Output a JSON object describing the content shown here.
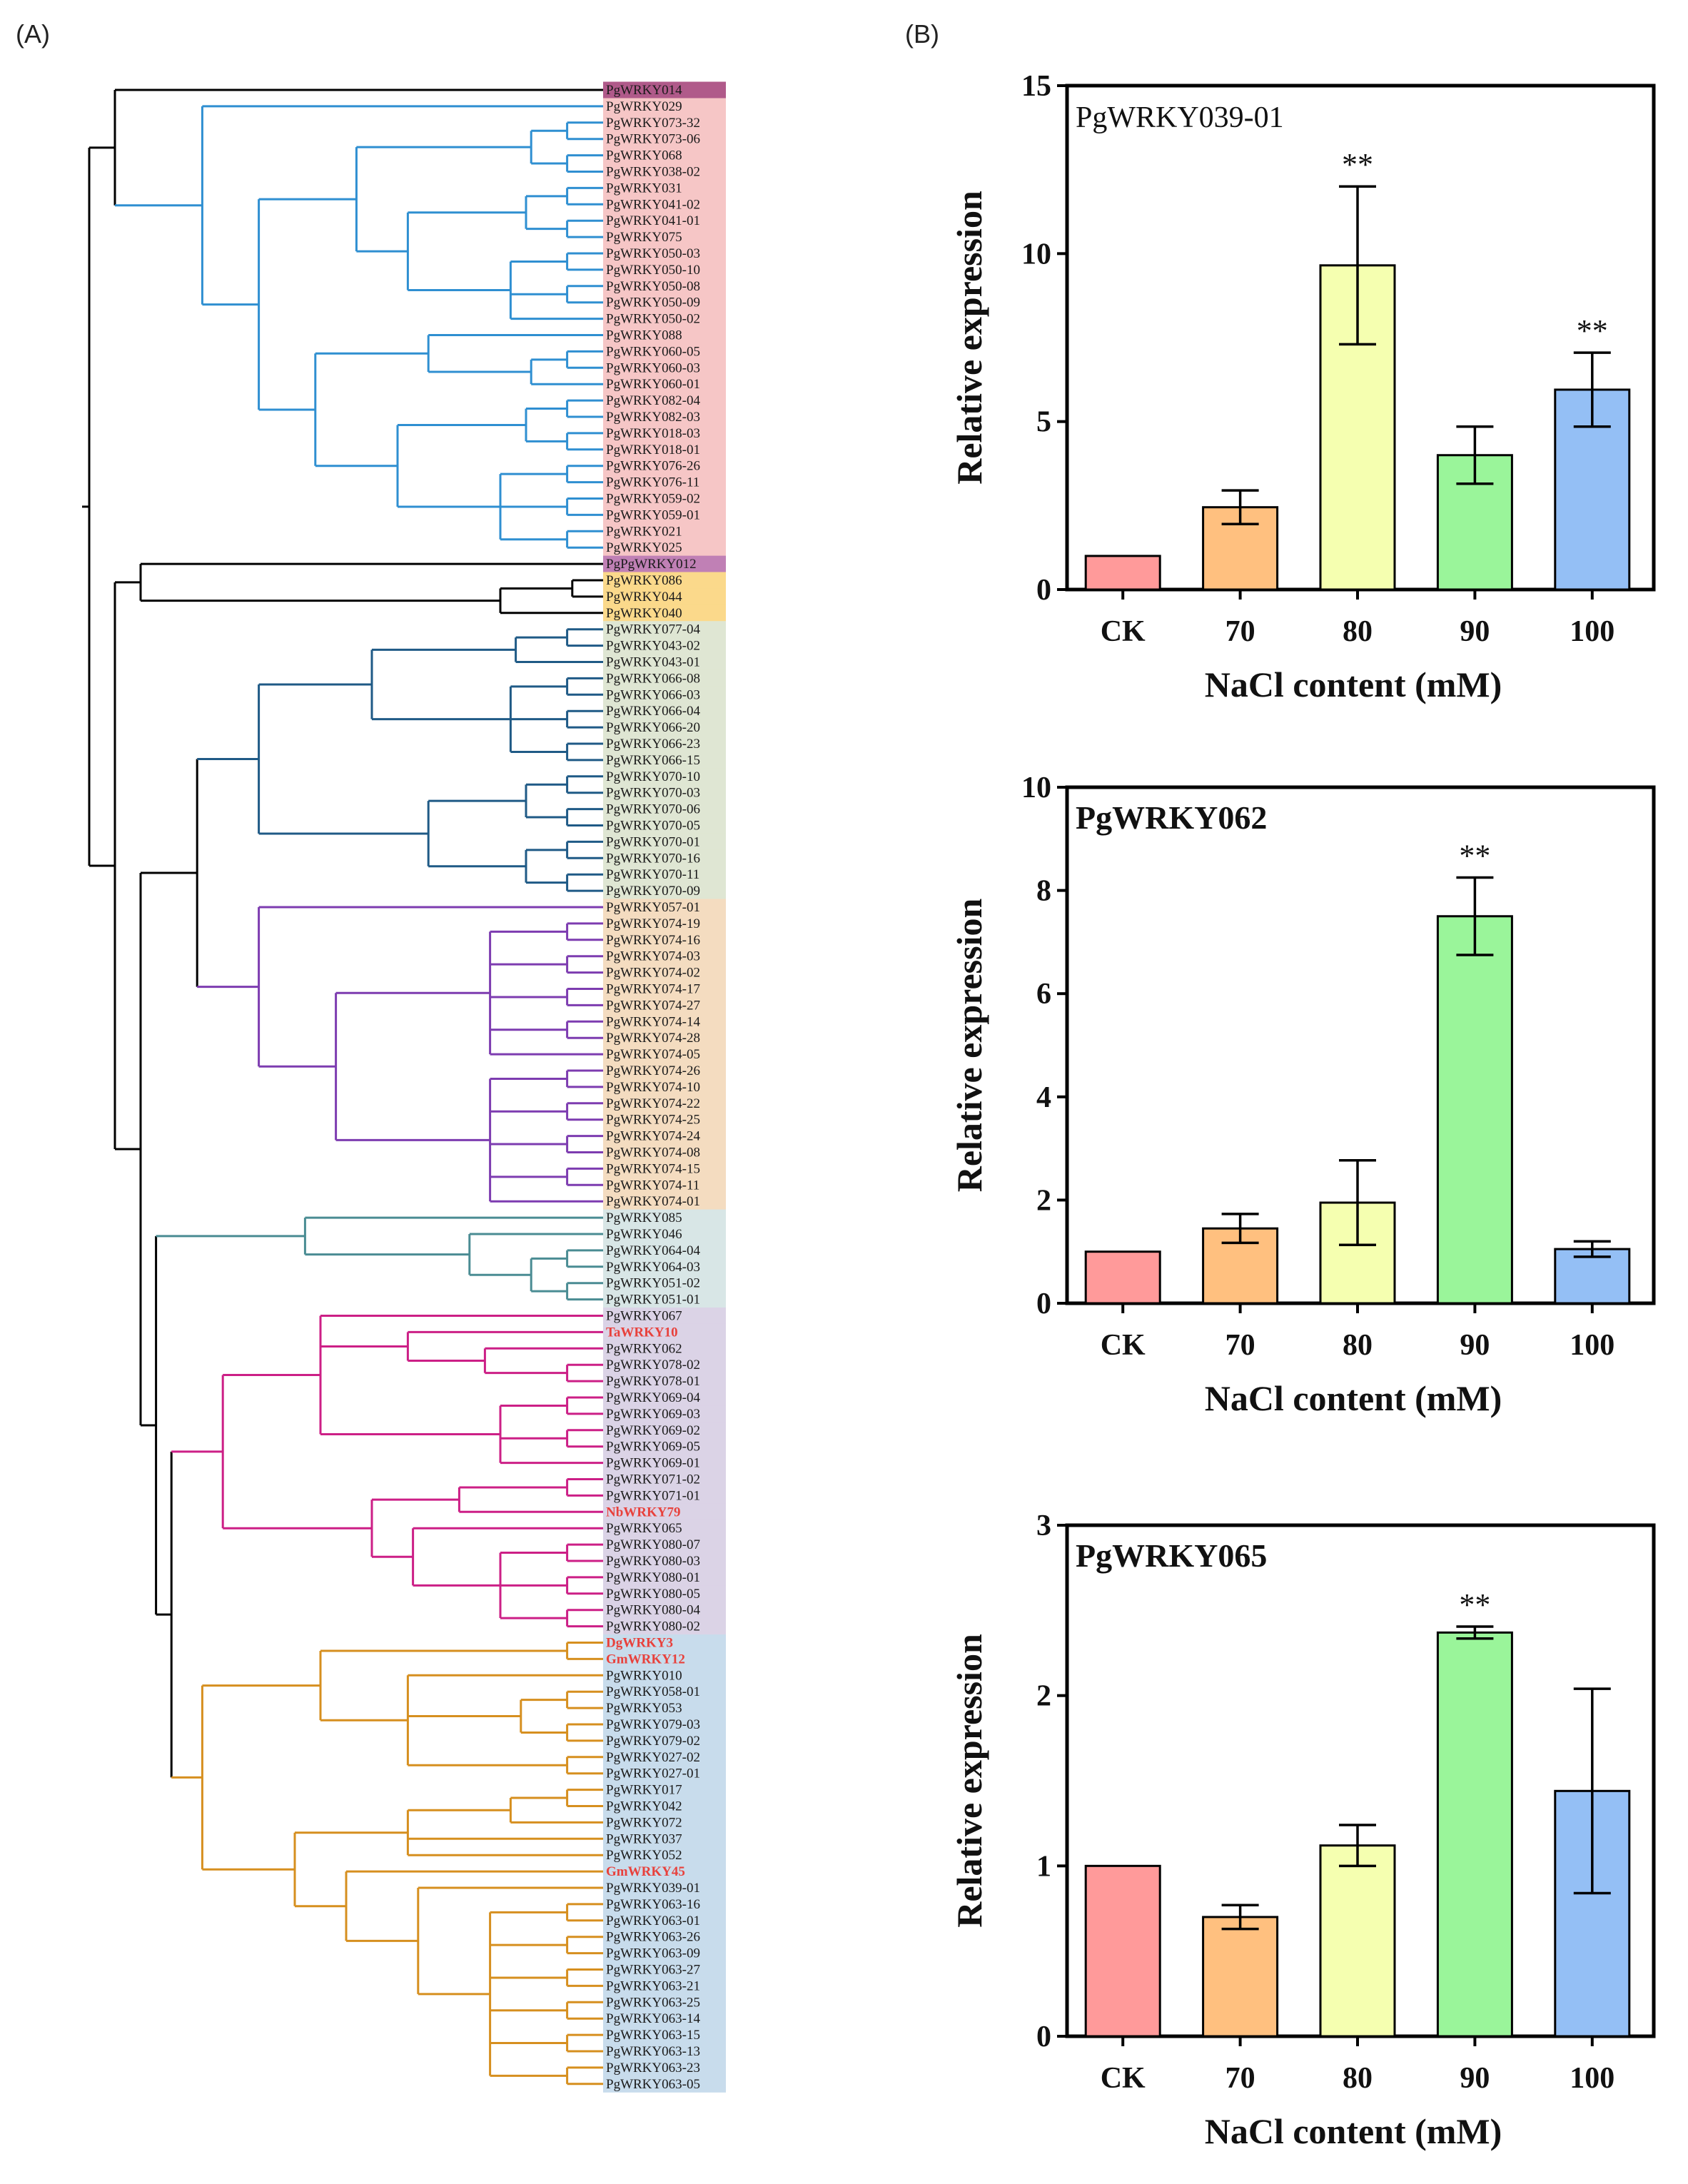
{
  "panels": {
    "a": "(A)",
    "b": "(B)"
  },
  "tree": {
    "leaves": [
      {
        "label": "PgWRKY014",
        "clade": "k"
      },
      {
        "label": "PgWRKY029",
        "clade": "b"
      },
      {
        "label": "PgWRKY073-32",
        "clade": "b"
      },
      {
        "label": "PgWRKY073-06",
        "clade": "b"
      },
      {
        "label": "PgWRKY068",
        "clade": "b"
      },
      {
        "label": "PgWRKY038-02",
        "clade": "b"
      },
      {
        "label": "PgWRKY031",
        "clade": "b"
      },
      {
        "label": "PgWRKY041-02",
        "clade": "b"
      },
      {
        "label": "PgWRKY041-01",
        "clade": "b"
      },
      {
        "label": "PgWRKY075",
        "clade": "b"
      },
      {
        "label": "PgWRKY050-03",
        "clade": "b"
      },
      {
        "label": "PgWRKY050-10",
        "clade": "b"
      },
      {
        "label": "PgWRKY050-08",
        "clade": "b"
      },
      {
        "label": "PgWRKY050-09",
        "clade": "b"
      },
      {
        "label": "PgWRKY050-02",
        "clade": "b"
      },
      {
        "label": "PgWRKY088",
        "clade": "b"
      },
      {
        "label": "PgWRKY060-05",
        "clade": "b"
      },
      {
        "label": "PgWRKY060-03",
        "clade": "b"
      },
      {
        "label": "PgWRKY060-01",
        "clade": "b"
      },
      {
        "label": "PgWRKY082-04",
        "clade": "b"
      },
      {
        "label": "PgWRKY082-03",
        "clade": "b"
      },
      {
        "label": "PgWRKY018-03",
        "clade": "b"
      },
      {
        "label": "PgWRKY018-01",
        "clade": "b"
      },
      {
        "label": "PgWRKY076-26",
        "clade": "b"
      },
      {
        "label": "PgWRKY076-11",
        "clade": "b"
      },
      {
        "label": "PgWRKY059-02",
        "clade": "b"
      },
      {
        "label": "PgWRKY059-01",
        "clade": "b"
      },
      {
        "label": "PgWRKY021",
        "clade": "b"
      },
      {
        "label": "PgWRKY025",
        "clade": "b"
      },
      {
        "label": "PgPgWRKY012",
        "clade": "k"
      },
      {
        "label": "PgWRKY086",
        "clade": "k"
      },
      {
        "label": "PgWRKY044",
        "clade": "k"
      },
      {
        "label": "PgWRKY040",
        "clade": "k"
      },
      {
        "label": "PgWRKY077-04",
        "clade": "n"
      },
      {
        "label": "PgWRKY043-02",
        "clade": "n"
      },
      {
        "label": "PgWRKY043-01",
        "clade": "n"
      },
      {
        "label": "PgWRKY066-08",
        "clade": "n"
      },
      {
        "label": "PgWRKY066-03",
        "clade": "n"
      },
      {
        "label": "PgWRKY066-04",
        "clade": "n"
      },
      {
        "label": "PgWRKY066-20",
        "clade": "n"
      },
      {
        "label": "PgWRKY066-23",
        "clade": "n"
      },
      {
        "label": "PgWRKY066-15",
        "clade": "n"
      },
      {
        "label": "PgWRKY070-10",
        "clade": "n"
      },
      {
        "label": "PgWRKY070-03",
        "clade": "n"
      },
      {
        "label": "PgWRKY070-06",
        "clade": "n"
      },
      {
        "label": "PgWRKY070-05",
        "clade": "n"
      },
      {
        "label": "PgWRKY070-01",
        "clade": "n"
      },
      {
        "label": "PgWRKY070-16",
        "clade": "n"
      },
      {
        "label": "PgWRKY070-11",
        "clade": "n"
      },
      {
        "label": "PgWRKY070-09",
        "clade": "n"
      },
      {
        "label": "PgWRKY057-01",
        "clade": "p"
      },
      {
        "label": "PgWRKY074-19",
        "clade": "p"
      },
      {
        "label": "PgWRKY074-16",
        "clade": "p"
      },
      {
        "label": "PgWRKY074-03",
        "clade": "p"
      },
      {
        "label": "PgWRKY074-02",
        "clade": "p"
      },
      {
        "label": "PgWRKY074-17",
        "clade": "p"
      },
      {
        "label": "PgWRKY074-27",
        "clade": "p"
      },
      {
        "label": "PgWRKY074-14",
        "clade": "p"
      },
      {
        "label": "PgWRKY074-28",
        "clade": "p"
      },
      {
        "label": "PgWRKY074-05",
        "clade": "p"
      },
      {
        "label": "PgWRKY074-26",
        "clade": "p"
      },
      {
        "label": "PgWRKY074-10",
        "clade": "p"
      },
      {
        "label": "PgWRKY074-22",
        "clade": "p"
      },
      {
        "label": "PgWRKY074-25",
        "clade": "p"
      },
      {
        "label": "PgWRKY074-24",
        "clade": "p"
      },
      {
        "label": "PgWRKY074-08",
        "clade": "p"
      },
      {
        "label": "PgWRKY074-15",
        "clade": "p"
      },
      {
        "label": "PgWRKY074-11",
        "clade": "p"
      },
      {
        "label": "PgWRKY074-01",
        "clade": "p"
      },
      {
        "label": "PgWRKY085",
        "clade": "t"
      },
      {
        "label": "PgWRKY046",
        "clade": "t"
      },
      {
        "label": "PgWRKY064-04",
        "clade": "t"
      },
      {
        "label": "PgWRKY064-03",
        "clade": "t"
      },
      {
        "label": "PgWRKY051-02",
        "clade": "t"
      },
      {
        "label": "PgWRKY051-01",
        "clade": "t"
      },
      {
        "label": "PgWRKY067",
        "clade": "m"
      },
      {
        "label": "TaWRKY10",
        "clade": "m",
        "ref": true
      },
      {
        "label": "PgWRKY062",
        "clade": "m"
      },
      {
        "label": "PgWRKY078-02",
        "clade": "m"
      },
      {
        "label": "PgWRKY078-01",
        "clade": "m"
      },
      {
        "label": "PgWRKY069-04",
        "clade": "m"
      },
      {
        "label": "PgWRKY069-03",
        "clade": "m"
      },
      {
        "label": "PgWRKY069-02",
        "clade": "m"
      },
      {
        "label": "PgWRKY069-05",
        "clade": "m"
      },
      {
        "label": "PgWRKY069-01",
        "clade": "m"
      },
      {
        "label": "PgWRKY071-02",
        "clade": "m"
      },
      {
        "label": "PgWRKY071-01",
        "clade": "m"
      },
      {
        "label": "NbWRKY79",
        "clade": "m",
        "ref": true
      },
      {
        "label": "PgWRKY065",
        "clade": "m"
      },
      {
        "label": "PgWRKY080-07",
        "clade": "m"
      },
      {
        "label": "PgWRKY080-03",
        "clade": "m"
      },
      {
        "label": "PgWRKY080-01",
        "clade": "m"
      },
      {
        "label": "PgWRKY080-05",
        "clade": "m"
      },
      {
        "label": "PgWRKY080-04",
        "clade": "m"
      },
      {
        "label": "PgWRKY080-02",
        "clade": "m"
      },
      {
        "label": "DgWRKY3",
        "clade": "o",
        "ref": true
      },
      {
        "label": "GmWRKY12",
        "clade": "o",
        "ref": true
      },
      {
        "label": "PgWRKY010",
        "clade": "o"
      },
      {
        "label": "PgWRKY058-01",
        "clade": "o"
      },
      {
        "label": "PgWRKY053",
        "clade": "o"
      },
      {
        "label": "PgWRKY079-03",
        "clade": "o"
      },
      {
        "label": "PgWRKY079-02",
        "clade": "o"
      },
      {
        "label": "PgWRKY027-02",
        "clade": "o"
      },
      {
        "label": "PgWRKY027-01",
        "clade": "o"
      },
      {
        "label": "PgWRKY017",
        "clade": "o"
      },
      {
        "label": "PgWRKY042",
        "clade": "o"
      },
      {
        "label": "PgWRKY072",
        "clade": "o"
      },
      {
        "label": "PgWRKY037",
        "clade": "o"
      },
      {
        "label": "PgWRKY052",
        "clade": "o"
      },
      {
        "label": "GmWRKY45",
        "clade": "o",
        "ref": true
      },
      {
        "label": "PgWRKY039-01",
        "clade": "o"
      },
      {
        "label": "PgWRKY063-16",
        "clade": "o"
      },
      {
        "label": "PgWRKY063-01",
        "clade": "o"
      },
      {
        "label": "PgWRKY063-26",
        "clade": "o"
      },
      {
        "label": "PgWRKY063-09",
        "clade": "o"
      },
      {
        "label": "PgWRKY063-27",
        "clade": "o"
      },
      {
        "label": "PgWRKY063-21",
        "clade": "o"
      },
      {
        "label": "PgWRKY063-25",
        "clade": "o"
      },
      {
        "label": "PgWRKY063-14",
        "clade": "o"
      },
      {
        "label": "PgWRKY063-15",
        "clade": "o"
      },
      {
        "label": "PgWRKY063-13",
        "clade": "o"
      },
      {
        "label": "PgWRKY063-23",
        "clade": "o"
      },
      {
        "label": "PgWRKY063-05",
        "clade": "o"
      }
    ]
  },
  "colors": {
    "branch_b": "#2f8fd1",
    "branch_n": "#1f5a86",
    "branch_p": "#7d3cb0",
    "branch_t": "#4a8c93",
    "branch_m": "#cc1f86",
    "branch_o": "#d68f1f",
    "branch_k": "#000000",
    "ref_label": "#e8413c",
    "leaf_label": "#1a1a1a",
    "band_014": "#b05a8a",
    "band_b": "#f6c6c6",
    "band_012": "#c080b5",
    "band_k": "#fbd98b",
    "band_n": "#dfe6d3",
    "band_p": "#f4dcc0",
    "band_t": "#d8e6e6",
    "band_m": "#dbd3e6",
    "band_o": "#c8dcec",
    "bar_CK": "#ff9a9a",
    "bar_70": "#ffc07f",
    "bar_80": "#f5ffb0",
    "bar_90": "#9af59a",
    "bar_100": "#94bff5"
  },
  "chart_data": [
    {
      "type": "bar",
      "title": "PgWRKY039-01",
      "categories": [
        "CK",
        "70",
        "80",
        "90",
        "100"
      ],
      "values": [
        1.0,
        2.45,
        9.65,
        4.0,
        5.95
      ],
      "errors": [
        0,
        0.5,
        2.35,
        0.85,
        1.1
      ],
      "significance": [
        "",
        "",
        "**",
        "",
        "**"
      ],
      "xlabel": "NaCl content (mM)",
      "ylabel": "Relative expression",
      "ylim": [
        0,
        15
      ],
      "yticks": [
        "0",
        "5",
        "10",
        "15"
      ],
      "grid": false
    },
    {
      "type": "bar",
      "title": "PgWRKY062",
      "categories": [
        "CK",
        "70",
        "80",
        "90",
        "100"
      ],
      "values": [
        1.0,
        1.45,
        1.95,
        7.5,
        1.05
      ],
      "errors": [
        0,
        0.28,
        0.82,
        0.75,
        0.15
      ],
      "significance": [
        "",
        "",
        "",
        "**",
        ""
      ],
      "xlabel": "NaCl content (mM)",
      "ylabel": "Relative expression",
      "ylim": [
        0,
        10
      ],
      "yticks": [
        "0",
        "2",
        "4",
        "6",
        "8",
        "10"
      ],
      "grid": false
    },
    {
      "type": "bar",
      "title": "PgWRKY065",
      "categories": [
        "CK",
        "70",
        "80",
        "90",
        "100"
      ],
      "values": [
        1.0,
        0.7,
        1.12,
        2.37,
        1.44
      ],
      "errors": [
        0,
        0.07,
        0.12,
        0.035,
        0.6
      ],
      "significance": [
        "",
        "",
        "",
        "**",
        ""
      ],
      "xlabel": "NaCl content (mM)",
      "ylabel": "Relative expression",
      "ylim": [
        0,
        3
      ],
      "yticks": [
        "0",
        "1",
        "2",
        "3"
      ],
      "grid": false
    }
  ]
}
